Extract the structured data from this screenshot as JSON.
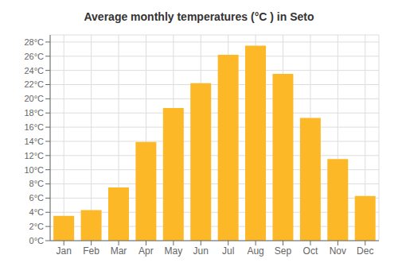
{
  "chart_data": {
    "type": "bar",
    "title": "Average monthly temperatures (°C ) in Seto",
    "categories": [
      "Jan",
      "Feb",
      "Mar",
      "Apr",
      "May",
      "Jun",
      "Jul",
      "Aug",
      "Sep",
      "Oct",
      "Nov",
      "Dec"
    ],
    "values": [
      3.5,
      4.3,
      7.5,
      13.9,
      18.7,
      22.2,
      26.2,
      27.5,
      23.5,
      17.3,
      11.5,
      6.3
    ],
    "color": "#FDB827",
    "ylim": [
      0,
      29
    ],
    "yticks": [
      {
        "value": 0,
        "label": "0°C"
      },
      {
        "value": 2,
        "label": "2°C"
      },
      {
        "value": 4,
        "label": "4°C"
      },
      {
        "value": 6,
        "label": "6°C"
      },
      {
        "value": 8,
        "label": "8°C"
      },
      {
        "value": 10,
        "label": "10°C"
      },
      {
        "value": 12,
        "label": "12°C"
      },
      {
        "value": 14,
        "label": "14°C"
      },
      {
        "value": 16,
        "label": "16°C"
      },
      {
        "value": 18,
        "label": "18°C"
      },
      {
        "value": 20,
        "label": "20°C"
      },
      {
        "value": 22,
        "label": "22°C"
      },
      {
        "value": 24,
        "label": "24°C"
      },
      {
        "value": 26,
        "label": "26°C"
      },
      {
        "value": 28,
        "label": "28°C"
      }
    ],
    "grid": true
  }
}
